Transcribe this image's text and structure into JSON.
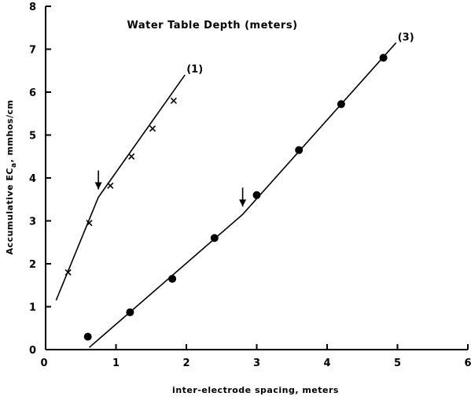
{
  "chart_data": {
    "type": "scatter",
    "title": "Water Table Depth (meters)",
    "xlabel": "inter-electrode spacing, meters",
    "ylabel": "Accumulative EC",
    "ylabel_subscript": "a",
    "ylabel_unit": ", mmhos/cm",
    "xlim": [
      0,
      6
    ],
    "ylim": [
      0,
      8
    ],
    "xticks": [
      "0",
      "1",
      "2",
      "3",
      "4",
      "5",
      "6"
    ],
    "yticks": [
      "0",
      "1",
      "2",
      "3",
      "4",
      "5",
      "6",
      "7",
      "8"
    ],
    "grid": false,
    "series": [
      {
        "name": "(1)",
        "marker": "x",
        "points": [
          {
            "x": 0.32,
            "y": 1.8
          },
          {
            "x": 0.62,
            "y": 2.95
          },
          {
            "x": 0.92,
            "y": 3.82
          },
          {
            "x": 1.22,
            "y": 4.5
          },
          {
            "x": 1.52,
            "y": 5.15
          },
          {
            "x": 1.82,
            "y": 5.8
          }
        ],
        "fit_line": [
          [
            0.15,
            1.15
          ],
          [
            0.75,
            3.55
          ],
          [
            1.98,
            6.4
          ]
        ],
        "arrow_at": {
          "x": 0.75,
          "y": 3.55
        }
      },
      {
        "name": "(3)",
        "marker": "circle",
        "points": [
          {
            "x": 0.6,
            "y": 0.3
          },
          {
            "x": 1.2,
            "y": 0.87
          },
          {
            "x": 1.8,
            "y": 1.65
          },
          {
            "x": 2.4,
            "y": 2.6
          },
          {
            "x": 3.0,
            "y": 3.6
          },
          {
            "x": 3.6,
            "y": 4.65
          },
          {
            "x": 4.2,
            "y": 5.72
          },
          {
            "x": 4.8,
            "y": 6.8
          }
        ],
        "fit_line": [
          [
            0.62,
            0.05
          ],
          [
            2.8,
            3.15
          ],
          [
            4.98,
            7.15
          ]
        ],
        "arrow_at": {
          "x": 2.8,
          "y": 3.15
        }
      }
    ]
  }
}
